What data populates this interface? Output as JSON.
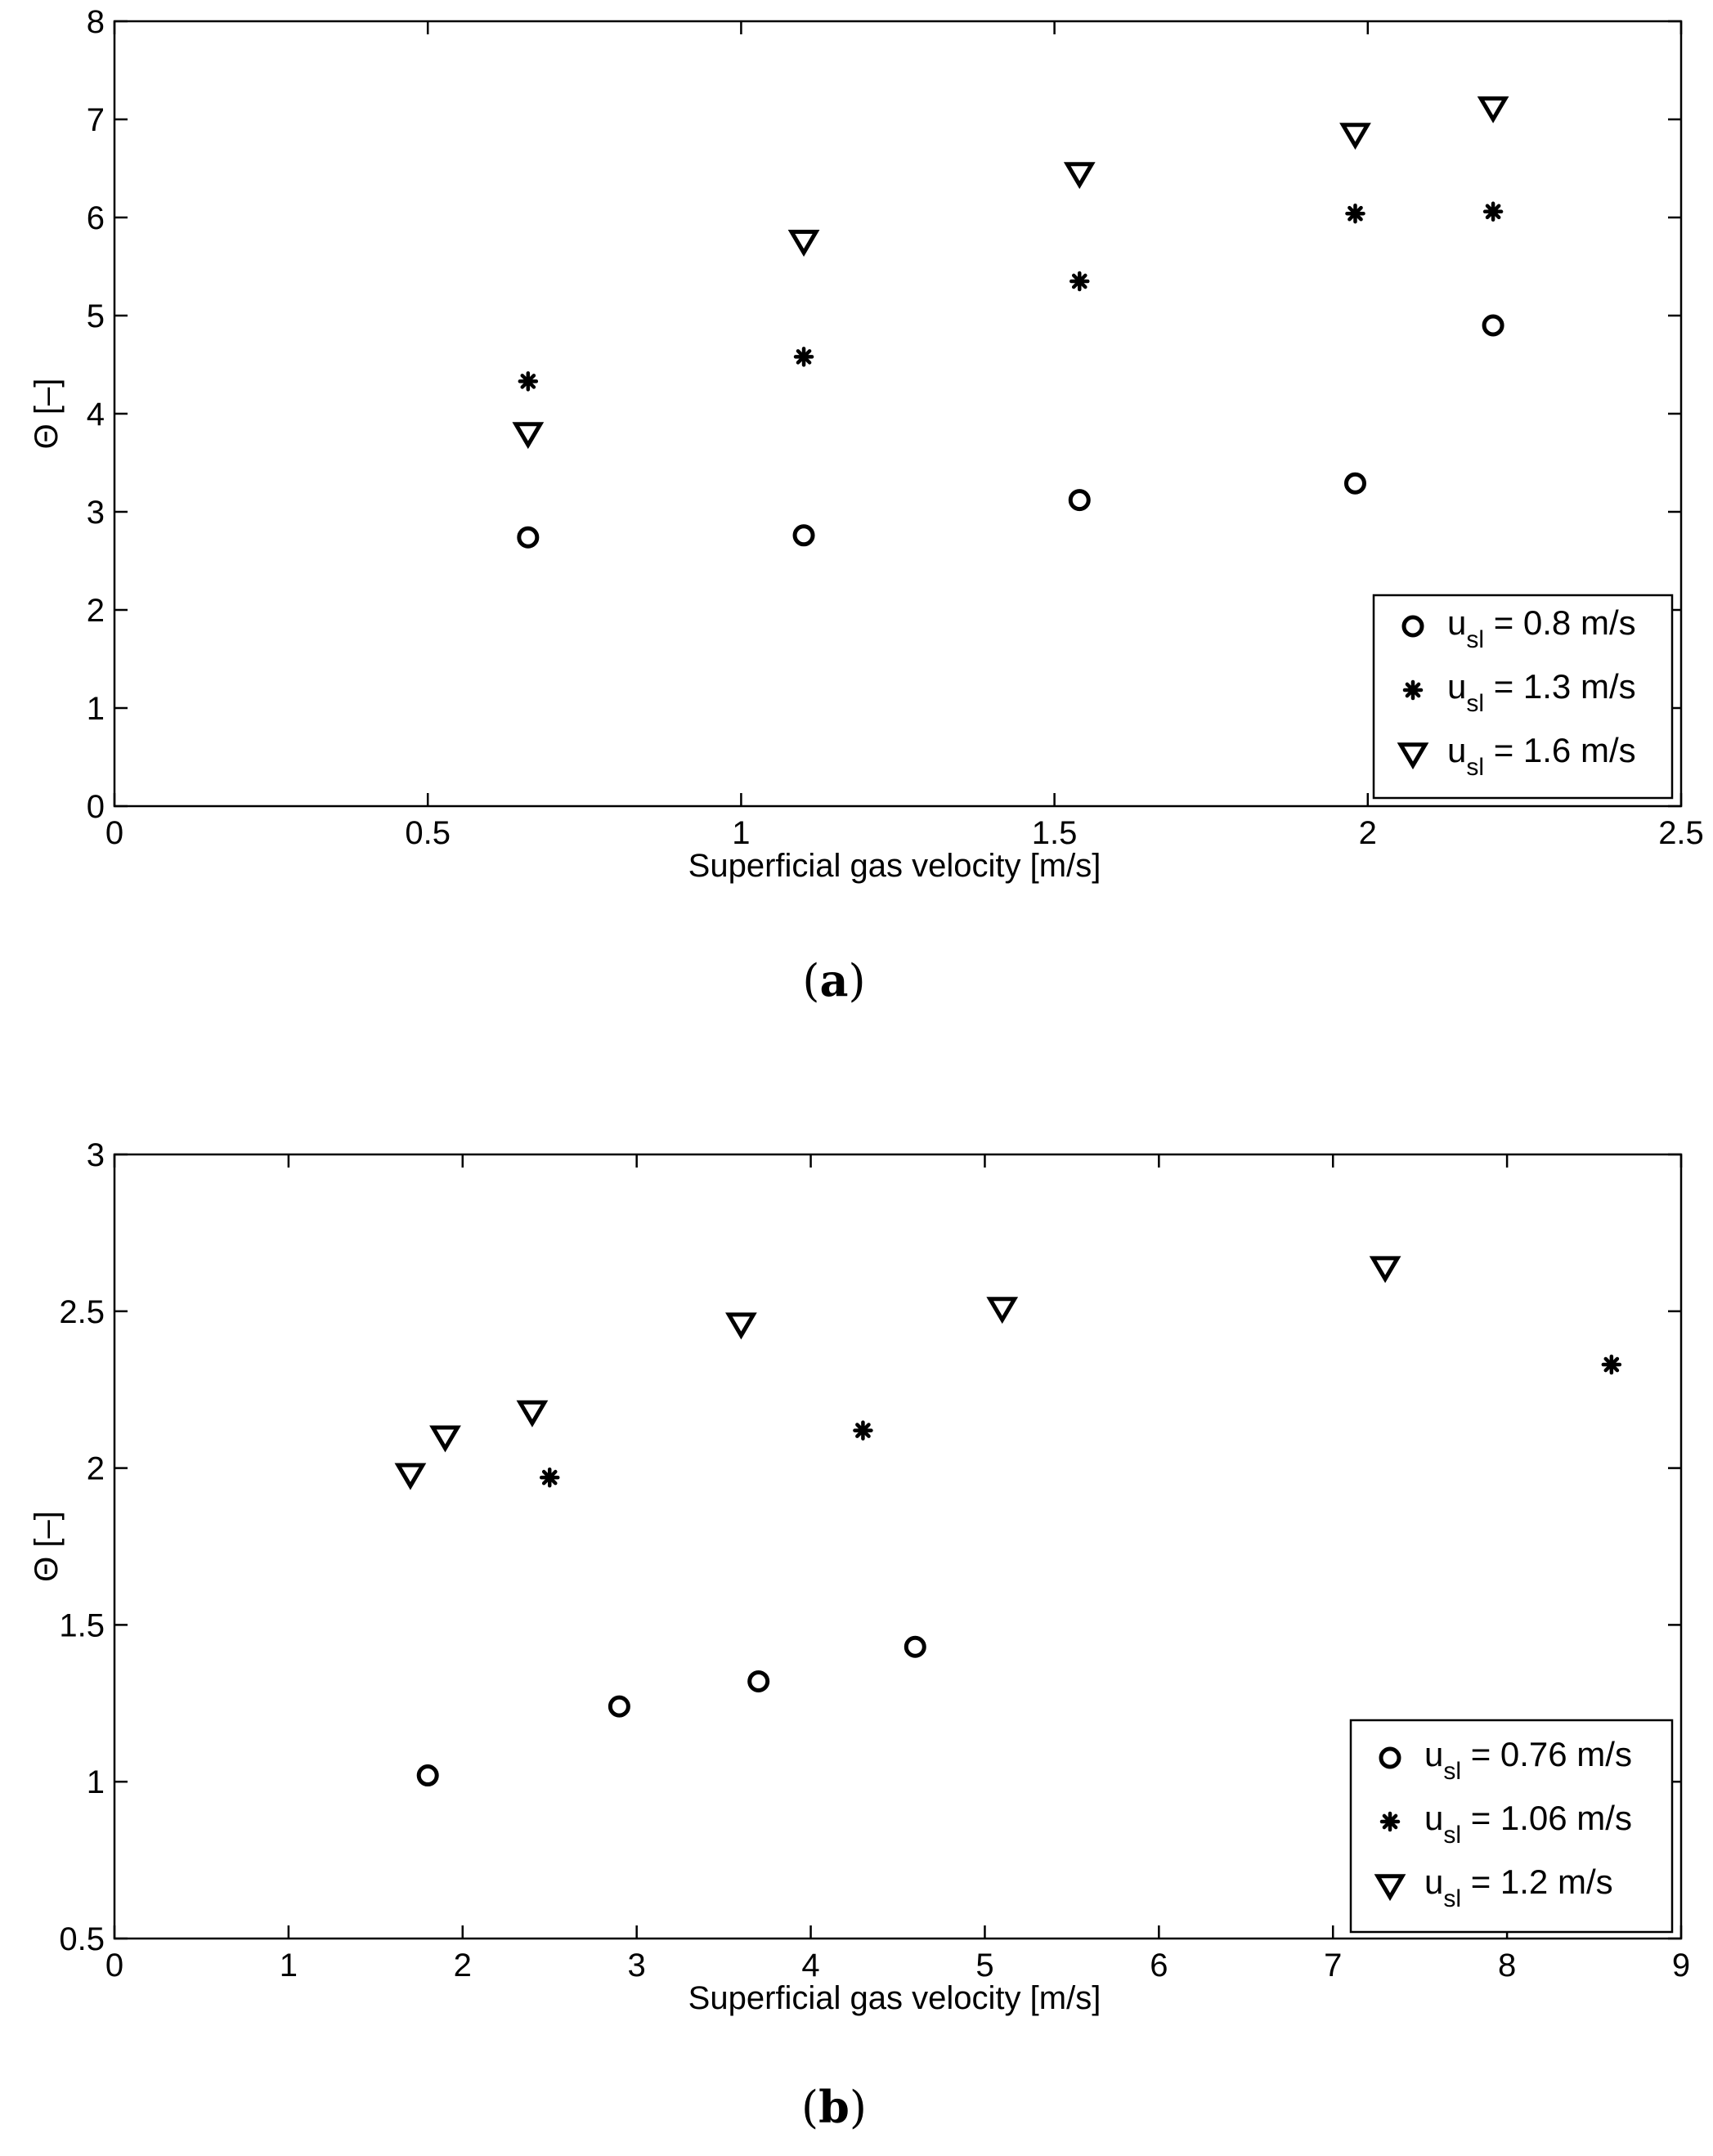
{
  "chart_data": [
    {
      "type": "scatter",
      "panel": "a",
      "caption": "(a)",
      "caption_letter": "a",
      "xlabel": "Superficial gas velocity [m/s]",
      "ylabel": "Θ [–]",
      "xlim": [
        0,
        2.5
      ],
      "ylim": [
        0,
        8
      ],
      "xticks": [
        0,
        0.5,
        1,
        1.5,
        2,
        2.5
      ],
      "yticks": [
        0,
        1,
        2,
        3,
        4,
        5,
        6,
        7,
        8
      ],
      "xtick_labels": [
        "0",
        "0.5",
        "1",
        "1.5",
        "2",
        "2.5"
      ],
      "ytick_labels": [
        "0",
        "1",
        "2",
        "3",
        "4",
        "5",
        "6",
        "7",
        "8"
      ],
      "legend_position": "bottom-right",
      "series": [
        {
          "name": "u_sl = 0.8 m/s",
          "label_main": "u",
          "label_sub": "sl",
          "label_rest": " = 0.8 m/s",
          "marker": "circle",
          "x": [
            0.66,
            1.1,
            1.54,
            1.98,
            2.2
          ],
          "y": [
            2.74,
            2.76,
            3.12,
            3.29,
            4.9
          ]
        },
        {
          "name": "u_sl = 1.3 m/s",
          "label_main": "u",
          "label_sub": "sl",
          "label_rest": " = 1.3 m/s",
          "marker": "star",
          "x": [
            0.66,
            1.1,
            1.54,
            1.98,
            2.2
          ],
          "y": [
            4.33,
            4.58,
            5.35,
            6.04,
            6.06
          ]
        },
        {
          "name": "u_sl = 1.6 m/s",
          "label_main": "u",
          "label_sub": "sl",
          "label_rest": " = 1.6 m/s",
          "marker": "triangle-down",
          "x": [
            0.66,
            1.1,
            1.54,
            1.98,
            2.2
          ],
          "y": [
            3.8,
            5.76,
            6.45,
            6.85,
            7.12
          ]
        }
      ]
    },
    {
      "type": "scatter",
      "panel": "b",
      "caption": "(b)",
      "caption_letter": "b",
      "xlabel": "Superficial gas velocity [m/s]",
      "ylabel": "Θ [–]",
      "xlim": [
        0,
        9
      ],
      "ylim": [
        0.5,
        3
      ],
      "xticks": [
        0,
        1,
        2,
        3,
        4,
        5,
        6,
        7,
        8,
        9
      ],
      "yticks": [
        0.5,
        1,
        1.5,
        2,
        2.5,
        3
      ],
      "xtick_labels": [
        "0",
        "1",
        "2",
        "3",
        "4",
        "5",
        "6",
        "7",
        "8",
        "9"
      ],
      "ytick_labels": [
        "0.5",
        "1",
        "1.5",
        "2",
        "2.5",
        "3"
      ],
      "legend_position": "bottom-right",
      "series": [
        {
          "name": "u_sl = 0.76 m/s",
          "label_main": "u",
          "label_sub": "sl",
          "label_rest": " = 0.76 m/s",
          "marker": "circle",
          "x": [
            1.8,
            2.9,
            3.7,
            4.6
          ],
          "y": [
            1.02,
            1.24,
            1.32,
            1.43
          ]
        },
        {
          "name": "u_sl = 1.06 m/s",
          "label_main": "u",
          "label_sub": "sl",
          "label_rest": " = 1.06 m/s",
          "marker": "star",
          "x": [
            2.5,
            4.3,
            8.6
          ],
          "y": [
            1.97,
            2.12,
            2.33
          ]
        },
        {
          "name": "u_sl = 1.2 m/s",
          "label_main": "u",
          "label_sub": "sl",
          "label_rest": " = 1.2 m/s",
          "marker": "triangle-down",
          "x": [
            1.7,
            1.9,
            2.4,
            3.6,
            5.1,
            7.3
          ],
          "y": [
            1.98,
            2.1,
            2.18,
            2.46,
            2.51,
            2.64
          ]
        }
      ]
    }
  ]
}
